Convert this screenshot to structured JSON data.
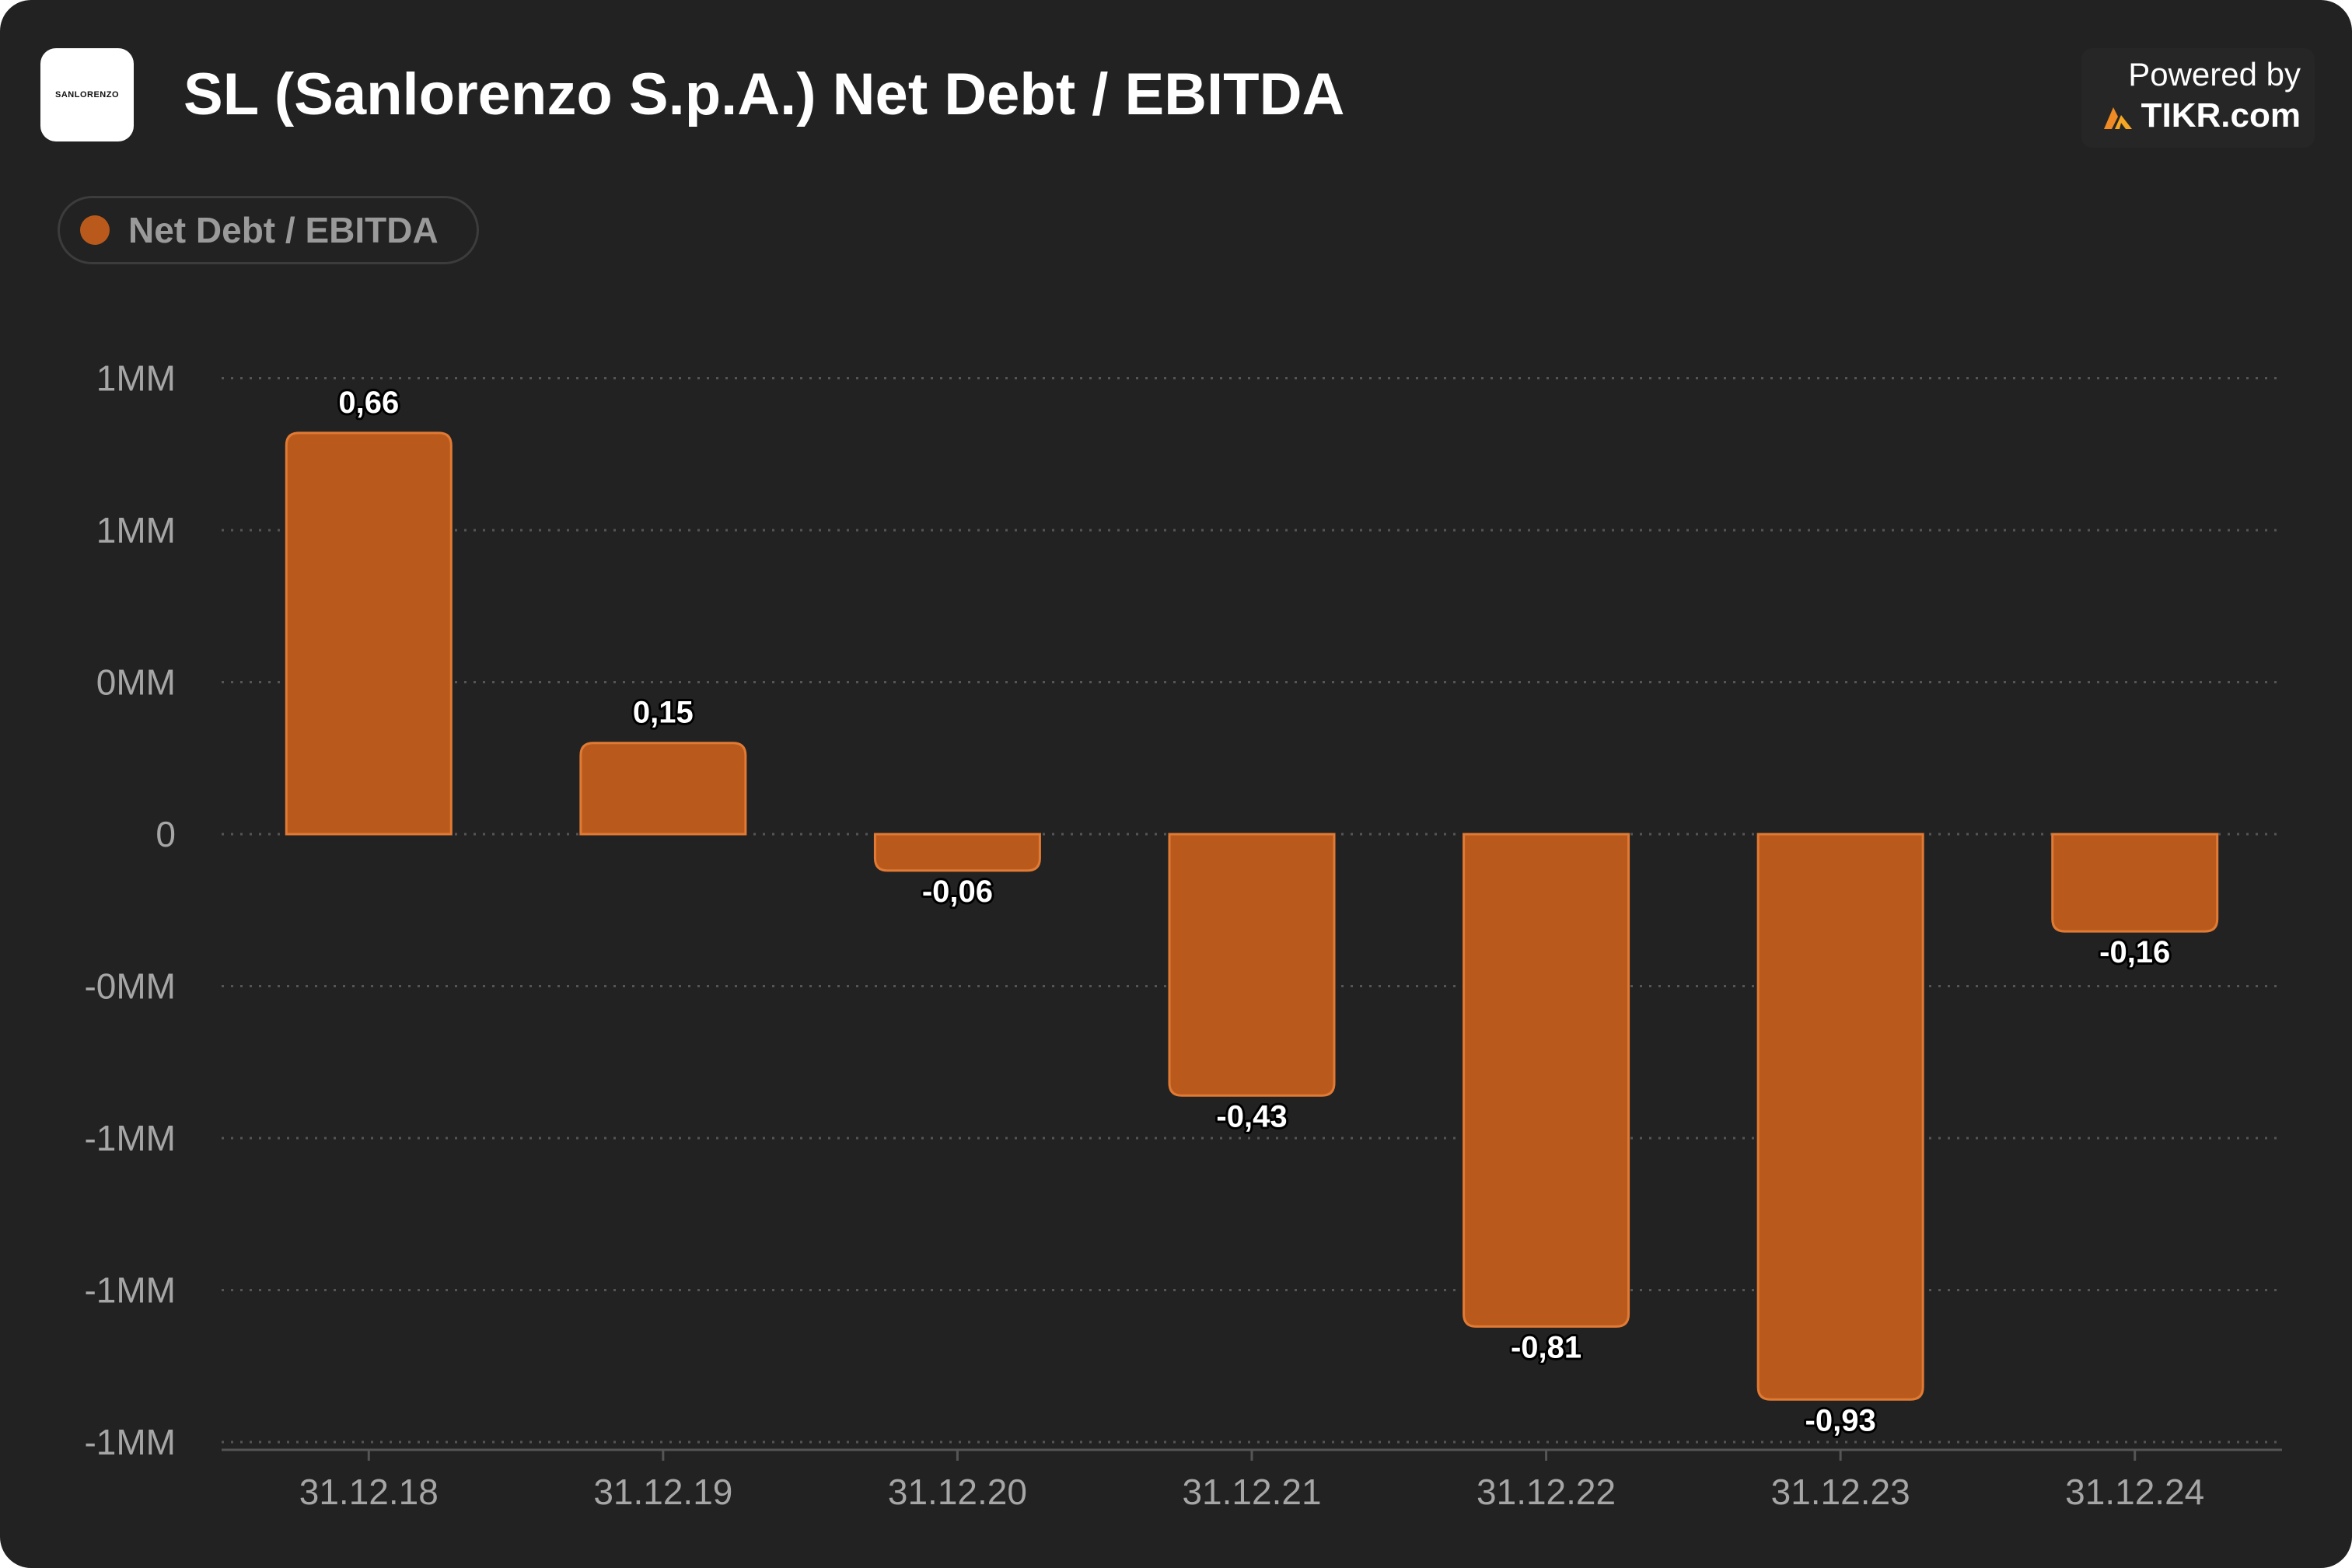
{
  "header": {
    "logo_text": "SANLORENZO",
    "title": "SL (Sanlorenzo S.p.A.) Net Debt / EBITDA",
    "powered_by": "Powered by",
    "brand": "TIKR.com"
  },
  "legend": {
    "label": "Net Debt / EBITDA"
  },
  "colors": {
    "bar": "#b95a1c",
    "bar_border": "#e07a34",
    "background": "#222222",
    "grid": "#555555"
  },
  "chart_data": {
    "type": "bar",
    "title": "SL (Sanlorenzo S.p.A.) Net Debt / EBITDA",
    "xlabel": "",
    "ylabel": "",
    "categories": [
      "31.12.18",
      "31.12.19",
      "31.12.20",
      "31.12.21",
      "31.12.22",
      "31.12.23",
      "31.12.24"
    ],
    "series": [
      {
        "name": "Net Debt / EBITDA",
        "values": [
          0.66,
          0.15,
          -0.06,
          -0.43,
          -0.81,
          -0.93,
          -0.16
        ],
        "labels": [
          "0,66",
          "0,15",
          "-0,06",
          "-0,43",
          "-0,81",
          "-0,93",
          "-0,16"
        ]
      }
    ],
    "ylim": [
      -1.0,
      0.75
    ],
    "yticks": [
      {
        "value": 0.75,
        "label": "1MM"
      },
      {
        "value": 0.5,
        "label": "1MM"
      },
      {
        "value": 0.25,
        "label": "0MM"
      },
      {
        "value": 0,
        "label": "0"
      },
      {
        "value": -0.25,
        "label": "-0MM"
      },
      {
        "value": -0.5,
        "label": "-1MM"
      },
      {
        "value": -0.75,
        "label": "-1MM"
      },
      {
        "value": -1.0,
        "label": "-1MM"
      }
    ],
    "grid": true,
    "legend_position": "top-left"
  }
}
